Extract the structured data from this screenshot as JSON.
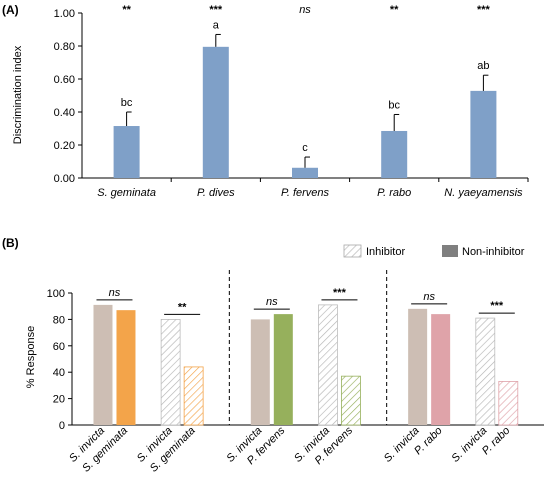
{
  "panel_a": {
    "label": "(A)",
    "chart_data": {
      "type": "bar",
      "categories": [
        "S. geminata",
        "P. dives",
        "P. fervens",
        "P. rabo",
        "N. yaeyamensis"
      ],
      "values": [
        0.315,
        0.795,
        0.062,
        0.285,
        0.528
      ],
      "errors": [
        0.085,
        0.075,
        0.065,
        0.1,
        0.095
      ],
      "letters": [
        "bc",
        "a",
        "c",
        "bc",
        "ab"
      ],
      "significance": [
        "**",
        "***",
        "ns",
        "**",
        "***"
      ],
      "ylabel": "Discrimination index",
      "ylim": [
        0,
        1.0
      ],
      "yticks": [
        0,
        0.2,
        0.4,
        0.6,
        0.8,
        1.0
      ],
      "ytick_labels": [
        "0.00",
        "0.20",
        "0.40",
        "0.60",
        "0.80",
        "1.00"
      ],
      "bar_color": "#7fa0c8",
      "grid": false
    }
  },
  "panel_b": {
    "label": "(B)",
    "legend": {
      "inhibitor": "Inhibitor",
      "non_inhibitor": "Non-inhibitor",
      "position": "top-right"
    },
    "chart_data": {
      "type": "bar",
      "ylabel": "% Response",
      "ylim": [
        0,
        100
      ],
      "yticks": [
        0,
        20,
        40,
        60,
        80,
        100
      ],
      "ytick_labels": [
        "0",
        "20",
        "40",
        "60",
        "80",
        "100"
      ],
      "groups": [
        {
          "pairs": [
            {
              "labels": [
                "S. invicta",
                "S. geminata"
              ],
              "values": [
                91,
                87
              ],
              "hatched": false,
              "sig": "ns"
            },
            {
              "labels": [
                "S. invicta",
                "S. geminata"
              ],
              "values": [
                80,
                44
              ],
              "hatched": true,
              "sig": "**"
            }
          ],
          "colors": [
            "#cdbeb4",
            "#f3a44a"
          ]
        },
        {
          "pairs": [
            {
              "labels": [
                "S. invicta",
                "P. fervens"
              ],
              "values": [
                80,
                84
              ],
              "hatched": false,
              "sig": "ns"
            },
            {
              "labels": [
                "S. invicta",
                "P. fervens"
              ],
              "values": [
                91,
                37
              ],
              "hatched": true,
              "sig": "***"
            }
          ],
          "colors": [
            "#cdbeb4",
            "#96b05c"
          ]
        },
        {
          "pairs": [
            {
              "labels": [
                "S. invicta",
                "P. rabo"
              ],
              "values": [
                88,
                84
              ],
              "hatched": false,
              "sig": "ns"
            },
            {
              "labels": [
                "S. invicta",
                "P. rabo"
              ],
              "values": [
                81,
                33
              ],
              "hatched": true,
              "sig": "***"
            }
          ],
          "colors": [
            "#cdbeb4",
            "#dfa3a9"
          ]
        }
      ],
      "grid": false
    }
  }
}
